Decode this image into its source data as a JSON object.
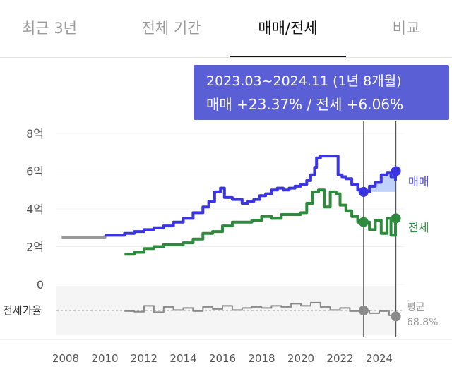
{
  "tabs": [
    {
      "label": "최근 3년",
      "active": false
    },
    {
      "label": "전체 기간",
      "active": false
    },
    {
      "label": "매매/전세",
      "active": true
    },
    {
      "label": "비교",
      "active": false
    }
  ],
  "tooltip": {
    "range": "2023.03~2024.11 (1년 8개월)",
    "change": "매매 +23.37%  /  전세 +6.06%"
  },
  "legend": {
    "sale": "매매",
    "jeonse": "전세"
  },
  "ratio_panel": {
    "label": "전세가율",
    "avg_label": "평균",
    "avg_value": "68.8%"
  },
  "colors": {
    "sale": "#3b35e0",
    "jeonse": "#2e8b3e",
    "early": "#9a9a9a",
    "ratio": "#8a8a8a",
    "highlight": "#b9cdfc",
    "tooltip": "#5b5fd6"
  },
  "chart_data": {
    "type": "line",
    "y_ticks": [
      "8억",
      "6억",
      "4억",
      "2억",
      "0"
    ],
    "y_tick_values": [
      8,
      6,
      4,
      2,
      0
    ],
    "x_ticks": [
      "2008",
      "2010",
      "2012",
      "2014",
      "2016",
      "2018",
      "2020",
      "2022",
      "2024"
    ],
    "x_tick_values": [
      2008,
      2010,
      2012,
      2014,
      2016,
      2018,
      2020,
      2022,
      2024
    ],
    "ylim": [
      0,
      8
    ],
    "xlim": [
      2007.8,
      2024.9
    ],
    "selection": {
      "start": 2023.2,
      "end": 2024.85
    },
    "series": [
      {
        "name": "매매",
        "color": "#3b35e0",
        "x": [
          2007.8,
          2009.5,
          2010.0,
          2010.5,
          2011.0,
          2011.5,
          2012.0,
          2012.5,
          2013.0,
          2013.5,
          2014.0,
          2014.5,
          2015.0,
          2015.3,
          2015.6,
          2015.9,
          2016.1,
          2016.5,
          2016.8,
          2017.0,
          2017.3,
          2017.6,
          2017.9,
          2018.2,
          2018.5,
          2018.8,
          2019.1,
          2019.4,
          2019.7,
          2020.0,
          2020.3,
          2020.5,
          2020.7,
          2020.8,
          2021.0,
          2021.3,
          2021.6,
          2021.9,
          2022.1,
          2022.3,
          2022.6,
          2022.9,
          2023.2,
          2023.5,
          2023.8,
          2024.1,
          2024.4,
          2024.6,
          2024.85,
          2025.2
        ],
        "values": [
          2.5,
          2.5,
          2.6,
          2.6,
          2.7,
          2.8,
          2.9,
          3.0,
          3.1,
          3.3,
          3.5,
          3.8,
          4.1,
          4.4,
          4.9,
          5.1,
          4.6,
          4.5,
          4.5,
          4.3,
          4.4,
          4.5,
          4.7,
          4.8,
          5.0,
          5.1,
          5.0,
          5.1,
          5.2,
          5.3,
          5.5,
          5.8,
          6.2,
          6.7,
          6.8,
          6.8,
          6.8,
          5.8,
          5.7,
          5.6,
          5.3,
          5.0,
          4.9,
          5.2,
          5.4,
          5.8,
          5.9,
          5.7,
          6.0,
          5.5
        ]
      },
      {
        "name": "전세",
        "color": "#2e8b3e",
        "x": [
          2011.0,
          2011.5,
          2012.0,
          2012.5,
          2013.0,
          2013.5,
          2014.0,
          2014.5,
          2015.0,
          2015.5,
          2016.0,
          2016.5,
          2017.0,
          2017.5,
          2018.0,
          2018.5,
          2019.0,
          2019.5,
          2020.0,
          2020.3,
          2020.6,
          2020.9,
          2021.2,
          2021.5,
          2021.8,
          2022.0,
          2022.3,
          2022.6,
          2022.9,
          2023.2,
          2023.5,
          2023.8,
          2024.1,
          2024.4,
          2024.6,
          2024.85,
          2025.2
        ],
        "values": [
          1.6,
          1.7,
          1.9,
          2.0,
          2.1,
          2.1,
          2.2,
          2.4,
          2.7,
          2.8,
          3.1,
          3.3,
          3.3,
          3.4,
          3.6,
          3.5,
          3.7,
          3.7,
          3.8,
          4.3,
          4.9,
          5.0,
          4.1,
          4.9,
          4.8,
          4.2,
          3.9,
          3.6,
          3.3,
          3.3,
          2.9,
          3.4,
          2.7,
          3.5,
          2.6,
          3.5,
          2.8
        ]
      },
      {
        "name": "전세가율",
        "color": "#8a8a8a",
        "x": [
          2011.0,
          2011.5,
          2012.0,
          2012.5,
          2013.0,
          2013.5,
          2014.0,
          2014.5,
          2015.0,
          2015.5,
          2016.0,
          2016.5,
          2017.0,
          2017.5,
          2018.0,
          2018.5,
          2019.0,
          2019.5,
          2020.0,
          2020.5,
          2021.0,
          2021.5,
          2022.0,
          2022.5,
          2023.0,
          2023.2,
          2023.5,
          2024.0,
          2024.5,
          2024.85,
          2025.2
        ],
        "values": [
          68.5,
          68.2,
          71.0,
          68.0,
          70.5,
          69.0,
          70.0,
          68.5,
          70.5,
          69.5,
          71.0,
          69.0,
          70.0,
          70.5,
          70.0,
          71.0,
          70.5,
          72.0,
          71.0,
          72.5,
          70.5,
          69.0,
          70.0,
          68.5,
          69.5,
          68.8,
          67.5,
          68.5,
          66.5,
          66.0,
          67.0
        ]
      }
    ]
  }
}
